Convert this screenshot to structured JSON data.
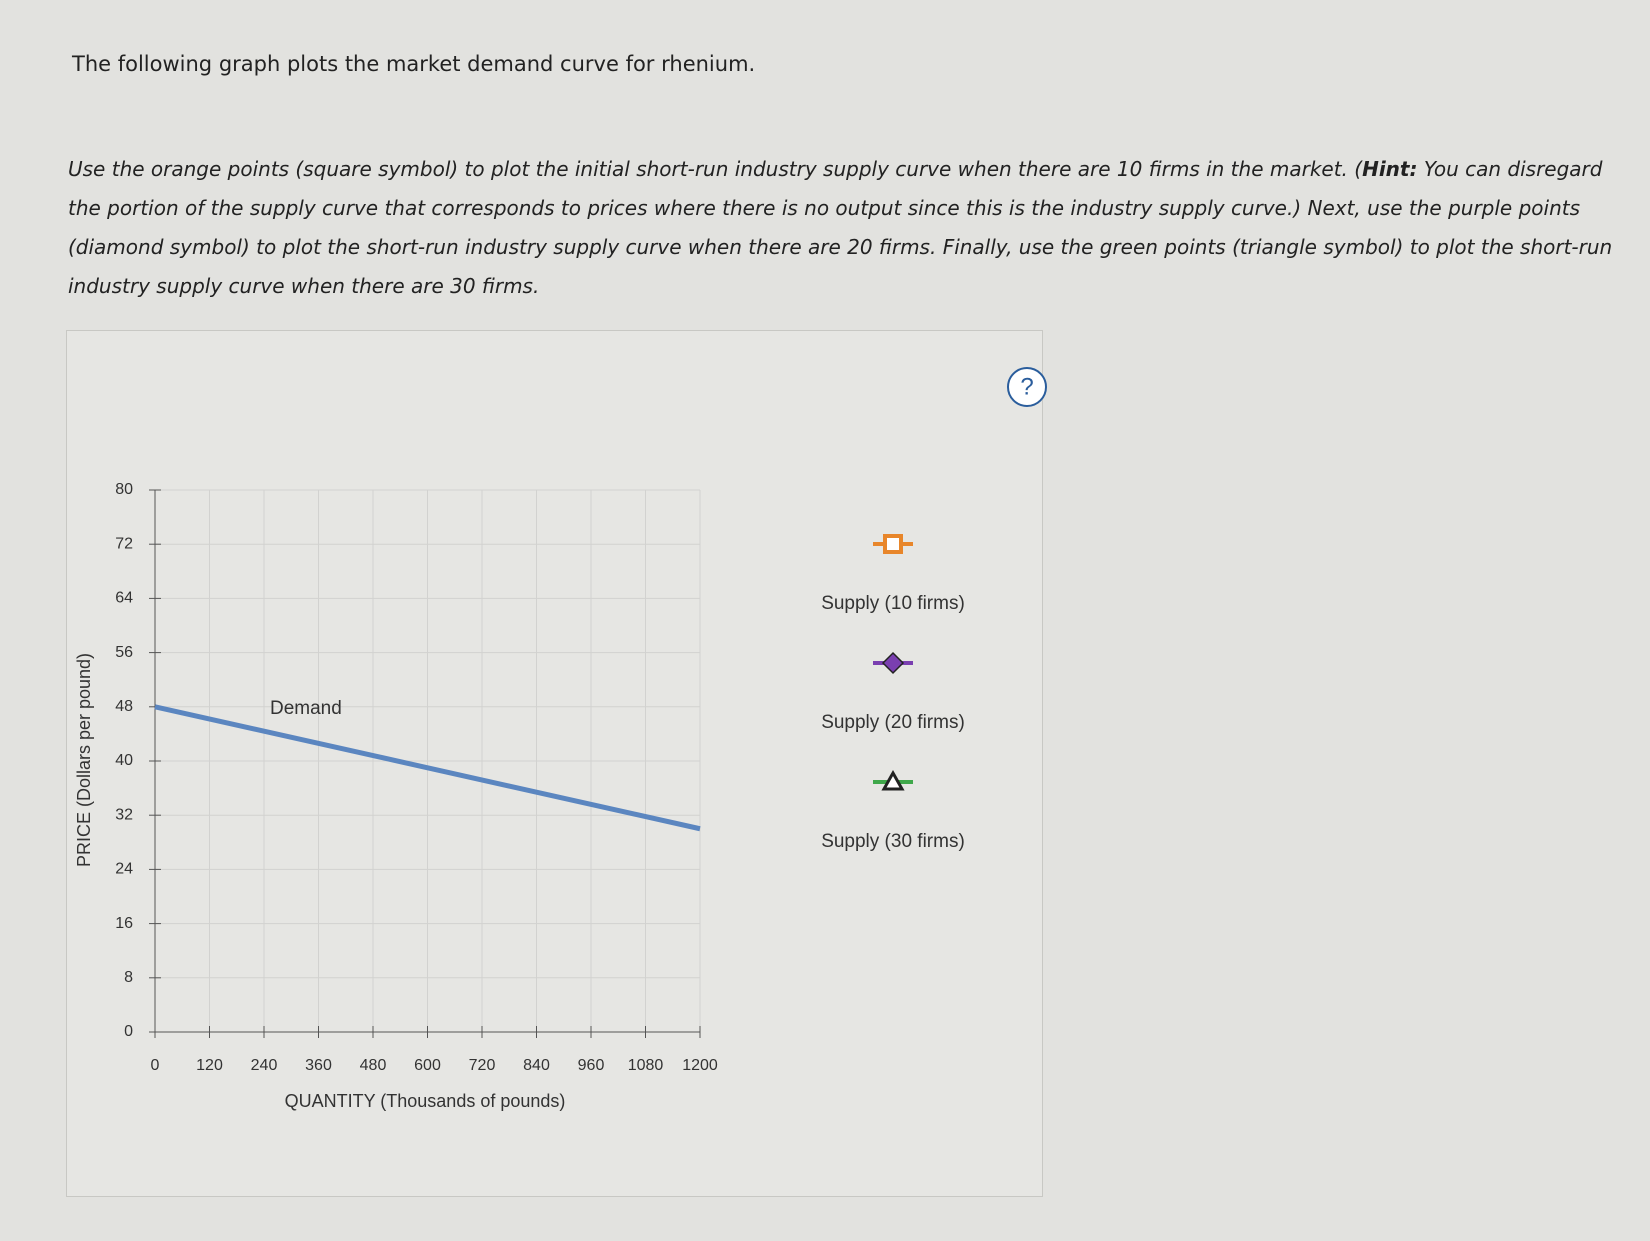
{
  "intro": "The following graph plots the market demand curve for rhenium.",
  "instructions": {
    "part1": "Use the orange points (square symbol) to plot the initial short-run industry supply curve when there are 10 firms in the market. (",
    "hint": "Hint:",
    "part2": " You can disregard the portion of the supply curve that corresponds to prices where there is no output since this is the industry supply curve.) Next, use the purple points (diamond symbol) to plot the short-run industry supply curve when there are 20 firms. Finally, use the green points (triangle symbol) to plot the short-run industry supply curve when there are 30 firms."
  },
  "help": "?",
  "chart_data": {
    "type": "line",
    "x_label": "QUANTITY (Thousands of pounds)",
    "y_label": "PRICE (Dollars per pound)",
    "xlim": [
      0,
      1200
    ],
    "ylim": [
      0,
      80
    ],
    "xticks": [
      0,
      120,
      240,
      360,
      480,
      600,
      720,
      840,
      960,
      1080,
      1200
    ],
    "yticks": [
      0,
      8,
      16,
      24,
      32,
      40,
      48,
      56,
      64,
      72,
      80
    ],
    "grid": true,
    "series": [
      {
        "name": "Demand",
        "color": "#5b86c0",
        "x": [
          0,
          1200
        ],
        "values": [
          48,
          30
        ]
      }
    ],
    "legend_items": [
      {
        "name": "Supply (10 firms)",
        "color": "#e8862a",
        "symbol": "square"
      },
      {
        "name": "Supply (20 firms)",
        "color": "#7a3fb0",
        "symbol": "diamond"
      },
      {
        "name": "Supply (30 firms)",
        "color": "#3fa84a",
        "symbol": "triangle"
      }
    ]
  }
}
